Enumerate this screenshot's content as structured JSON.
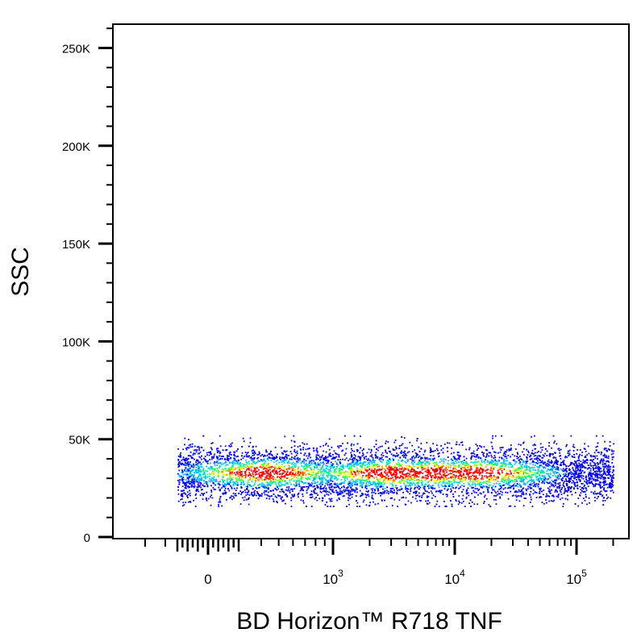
{
  "chart_data": {
    "type": "scatter",
    "style": "density-colored flow cytometry dot plot",
    "xlabel": "BD Horizon™ R718  TNF",
    "ylabel": "SSC",
    "x_scale": "biexponential (linear near 0, log above)",
    "x_ticks": [
      {
        "value": 0,
        "label": "0"
      },
      {
        "value": 1000,
        "base": "10",
        "exp": "3"
      },
      {
        "value": 10000,
        "base": "10",
        "exp": "4"
      },
      {
        "value": 100000,
        "base": "10",
        "exp": "5"
      }
    ],
    "y_ticks": [
      {
        "value": 0,
        "label": "0"
      },
      {
        "value": 50000,
        "label": "50K"
      },
      {
        "value": 100000,
        "label": "100K"
      },
      {
        "value": 150000,
        "label": "150K"
      },
      {
        "value": 200000,
        "label": "200K"
      },
      {
        "value": 250000,
        "label": "250K"
      }
    ],
    "ylim": [
      0,
      262144
    ],
    "population": {
      "x_range": [
        -300,
        200000
      ],
      "ssc_center": 33000,
      "ssc_range": [
        16000,
        52000
      ],
      "density_peak_x": [
        3000,
        15000
      ]
    },
    "density_colors": [
      "#0000ff",
      "#00b4ff",
      "#00e5c8",
      "#40ff40",
      "#ffff00",
      "#ff8000",
      "#ff0000"
    ],
    "grid": false,
    "legend": "none"
  }
}
